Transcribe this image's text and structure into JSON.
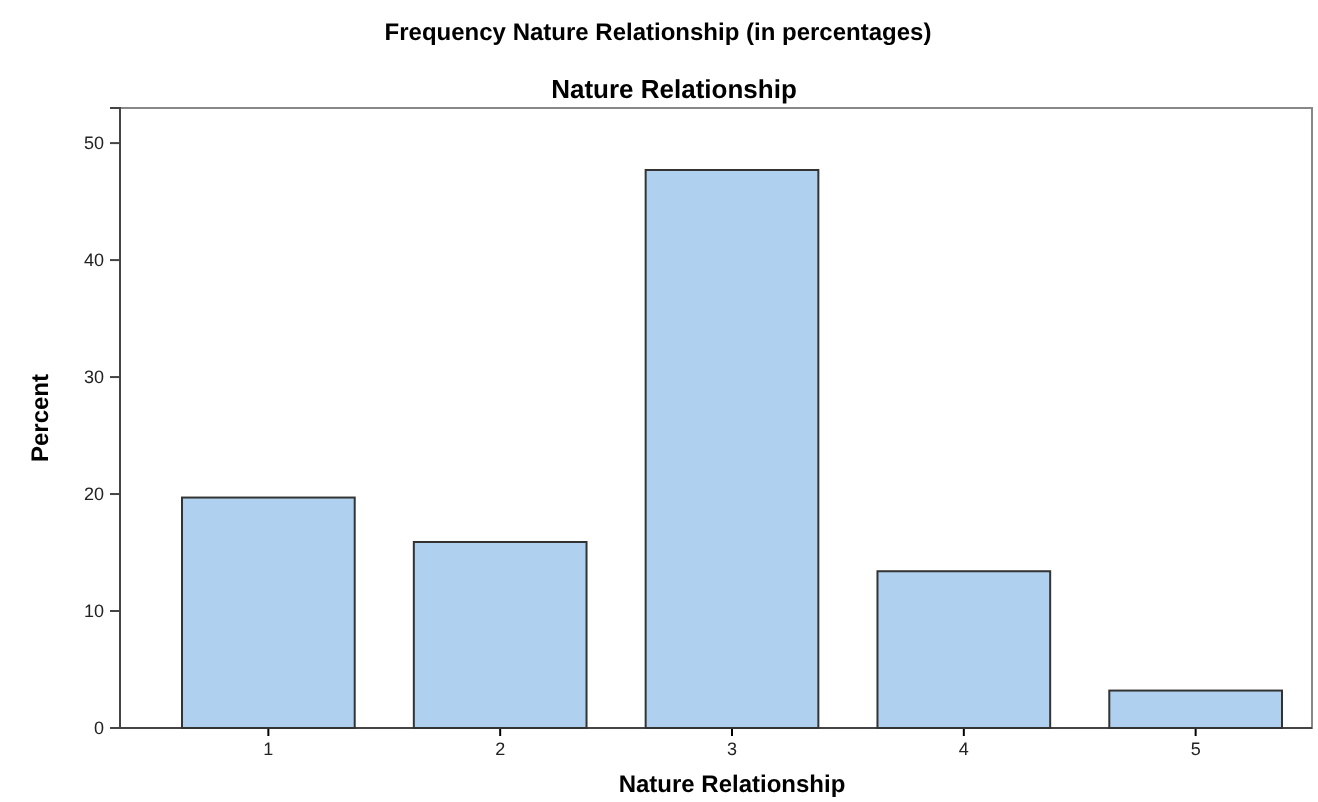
{
  "chart_data": {
    "type": "bar",
    "title": "Frequency Nature Relationship (in percentages)",
    "subtitle": "Nature Relationship",
    "xlabel": "Nature Relationship",
    "ylabel": "Percent",
    "categories": [
      "1",
      "2",
      "3",
      "4",
      "5"
    ],
    "values": [
      19.7,
      15.9,
      47.7,
      13.4,
      3.2
    ],
    "color": "#afd0ee",
    "ylim": [
      0,
      53
    ],
    "yticks": [
      0,
      10,
      20,
      30,
      40,
      50
    ],
    "grid": false
  }
}
